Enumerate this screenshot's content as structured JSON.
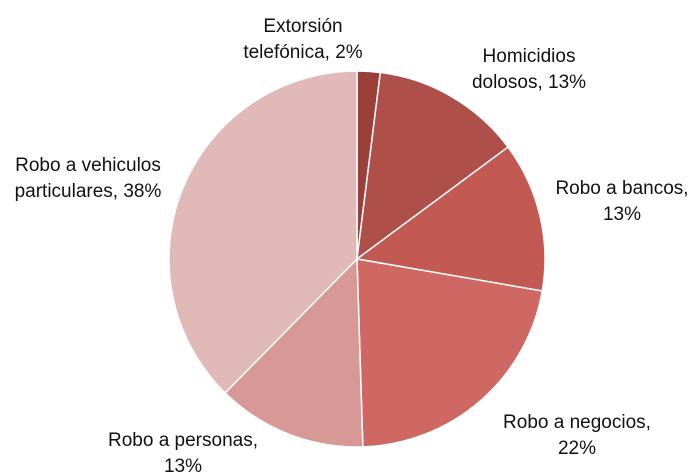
{
  "chart_data": {
    "type": "pie",
    "title": "",
    "start_angle_deg": 0,
    "direction": "clockwise",
    "slices": [
      {
        "lines": [
          "Extorsión",
          "telefónica, 2%"
        ],
        "value": 2,
        "color": "#9a3f3a"
      },
      {
        "lines": [
          "Homicidios",
          "dolosos, 13%"
        ],
        "value": 13,
        "color": "#ae5049"
      },
      {
        "lines": [
          "Robo a bancos,",
          "13%"
        ],
        "value": 13,
        "color": "#c25a53"
      },
      {
        "lines": [
          "Robo a negocios,",
          "22%"
        ],
        "value": 22,
        "color": "#cf6862"
      },
      {
        "lines": [
          "Robo a personas,",
          "13%"
        ],
        "value": 13,
        "color": "#d89896"
      },
      {
        "lines": [
          "Robo a vehiculos",
          "particulares, 38%"
        ],
        "value": 38,
        "color": "#e0b9b8"
      }
    ]
  }
}
